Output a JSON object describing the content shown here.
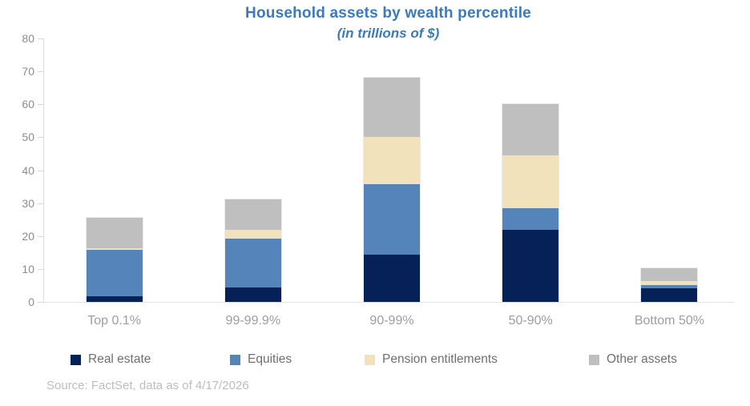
{
  "chart_data": {
    "type": "bar",
    "stacked": true,
    "title": "Household assets by wealth percentile",
    "subtitle": "(in trillions of $)",
    "title_color": "#3a7abd",
    "categories": [
      "Top 0.1%",
      "99-99.9%",
      "90-99%",
      "50-90%",
      "Bottom 50%"
    ],
    "series": [
      {
        "name": "Real estate",
        "color": "#062058",
        "values": [
          1.8,
          4.3,
          14.4,
          22.0,
          4.2
        ]
      },
      {
        "name": "Equities",
        "color": "#5484ba",
        "values": [
          13.9,
          14.9,
          21.3,
          6.5,
          0.8
        ]
      },
      {
        "name": "Pension entitlements",
        "color": "#f2e2bc",
        "values": [
          0.5,
          2.7,
          14.5,
          16.0,
          1.3
        ]
      },
      {
        "name": "Other assets",
        "color": "#bfbfbf",
        "values": [
          9.4,
          9.3,
          17.8,
          15.5,
          3.9
        ]
      }
    ],
    "ylim": [
      0,
      80
    ],
    "y_ticks": [
      0,
      10,
      20,
      30,
      40,
      50,
      60,
      70,
      80
    ],
    "grid": false,
    "legend_position": "bottom",
    "source": "Source: FactSet, data as of 4/17/2026"
  }
}
